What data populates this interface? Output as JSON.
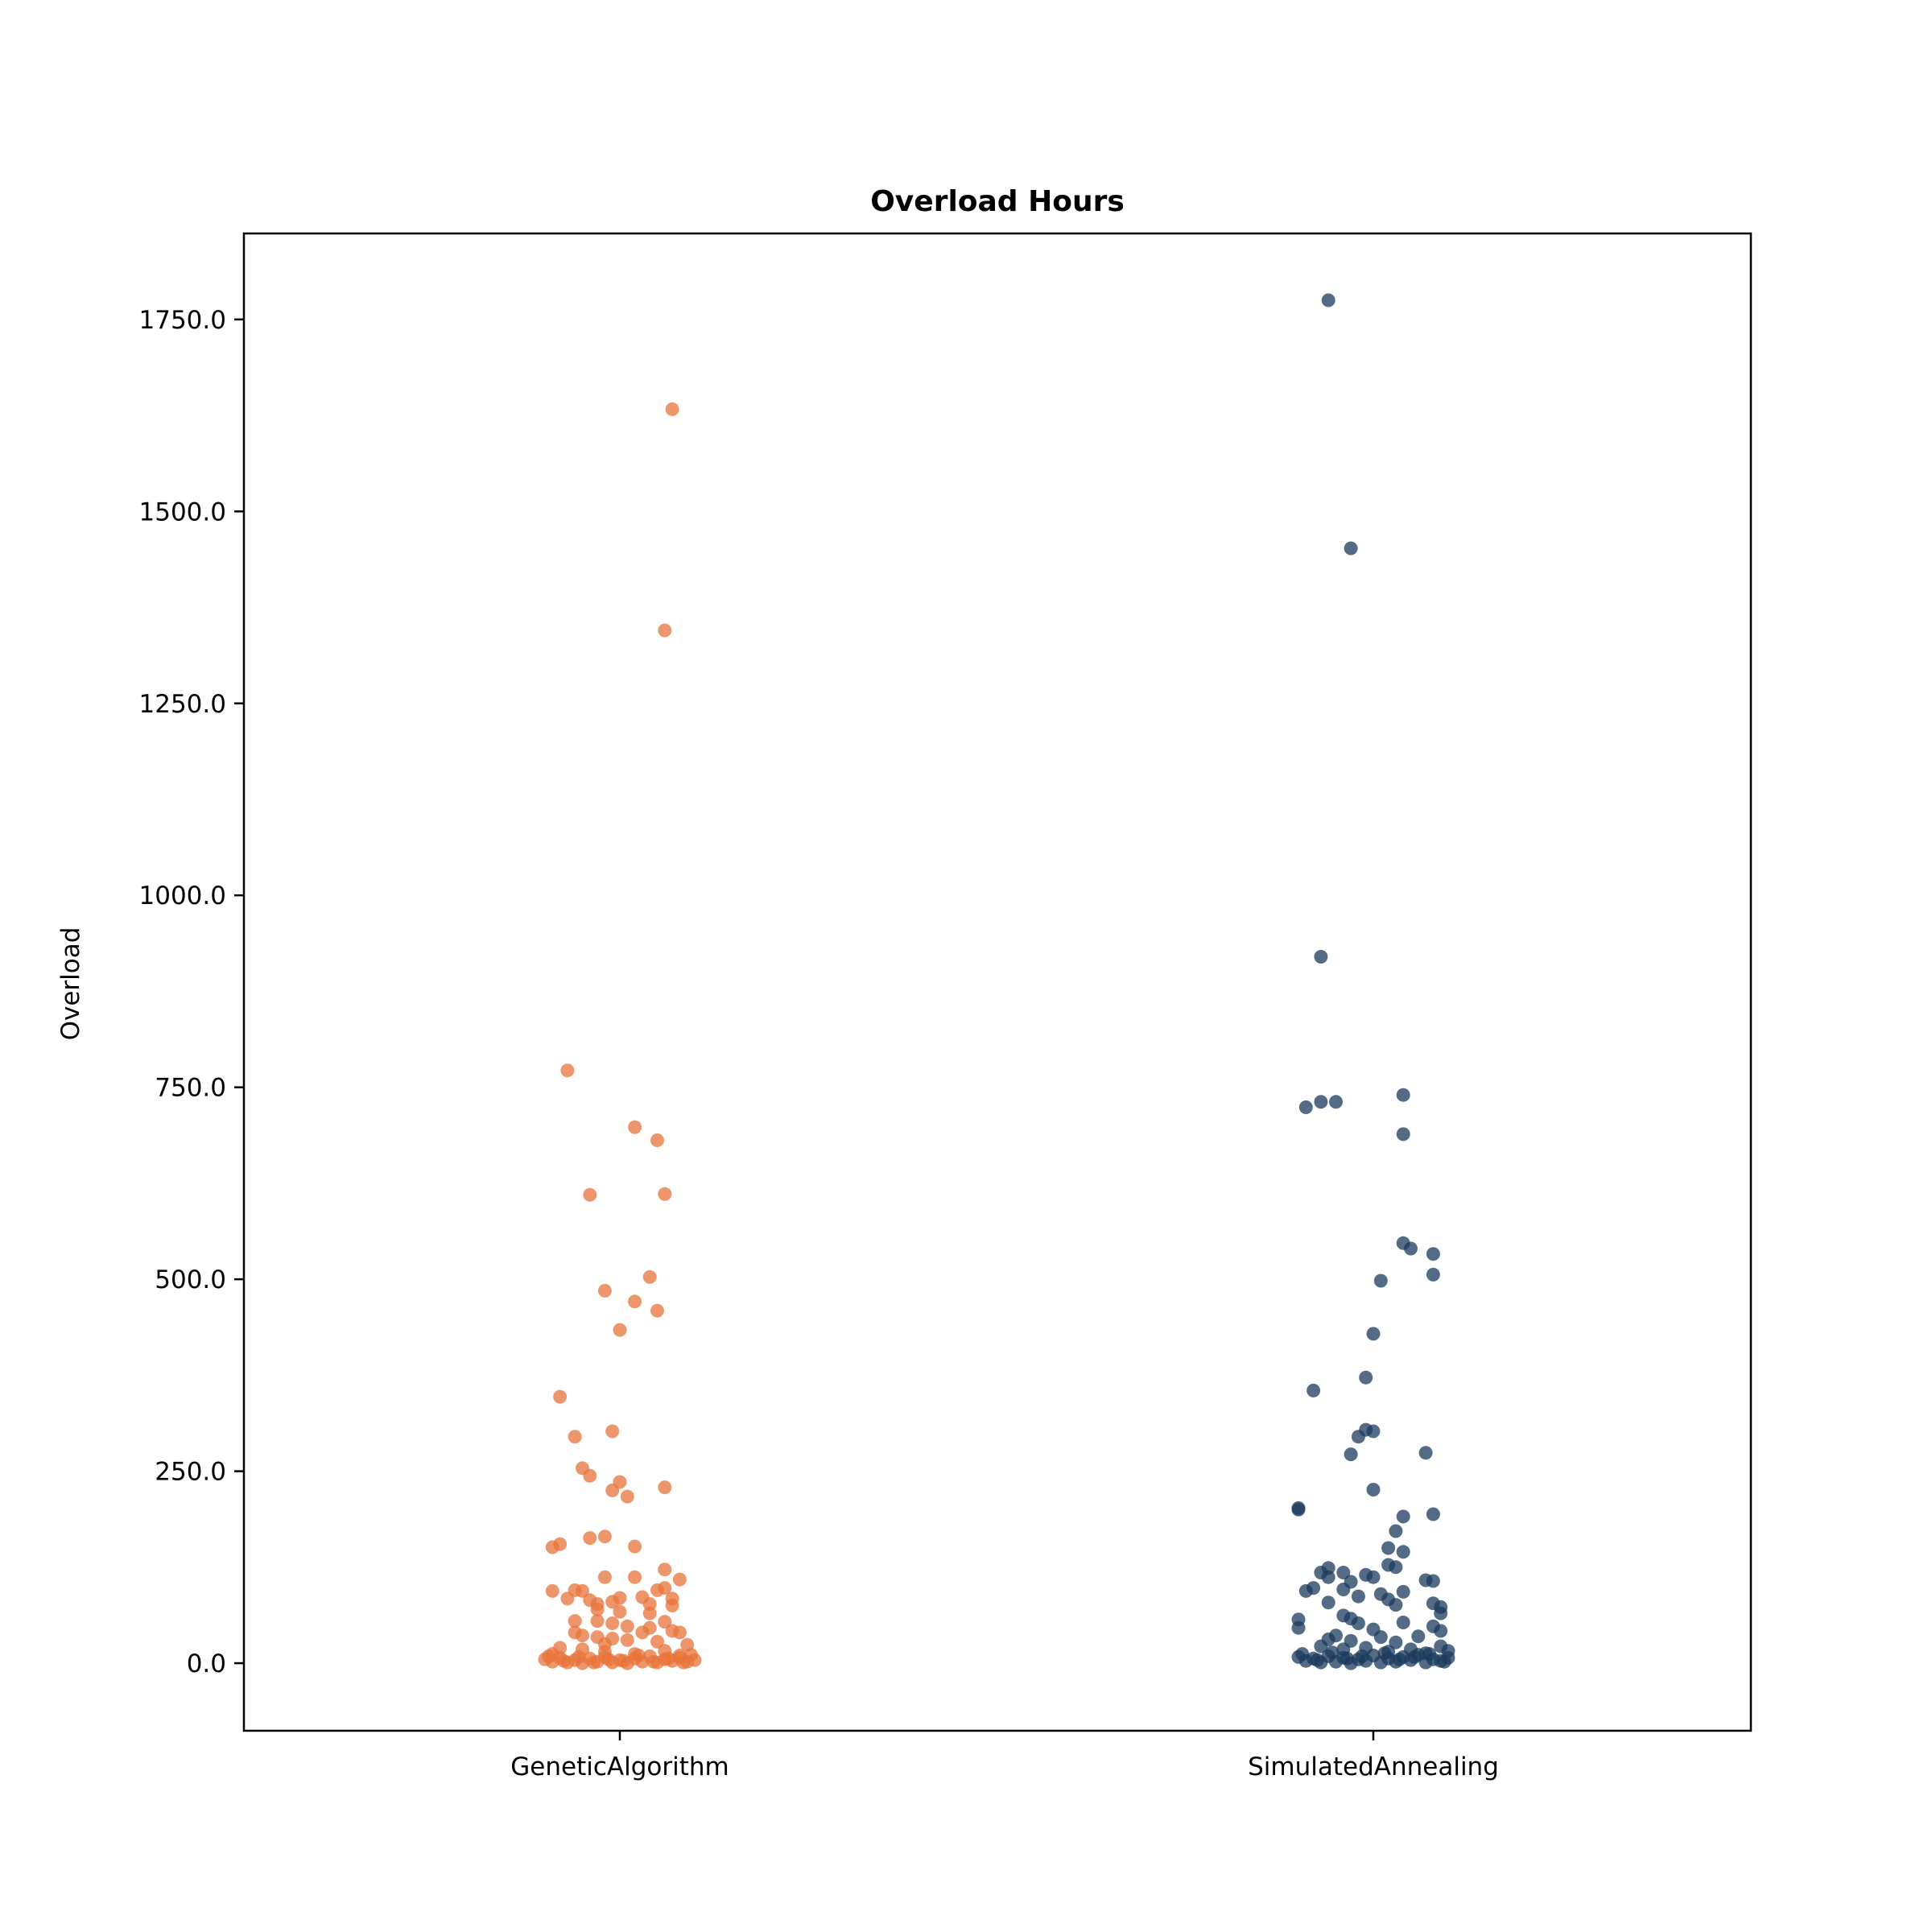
{
  "chart_data": {
    "type": "scatter",
    "title": "Overload Hours",
    "xlabel": "",
    "ylabel": "Overload",
    "categories": [
      "GeneticAlgorithm",
      "SimulatedAnnealing"
    ],
    "ylim": [
      -88,
      1862
    ],
    "yticks": [
      "0.0",
      "250.0",
      "500.0",
      "750.0",
      "1000.0",
      "1250.0",
      "1500.0",
      "1750.0"
    ],
    "grid": false,
    "legend": "none",
    "series": [
      {
        "color": "#E8733A",
        "points": [
          {
            "x": 0.07,
            "y": 1633
          },
          {
            "x": 0.06,
            "y": 1345
          },
          {
            "x": -0.07,
            "y": 772
          },
          {
            "x": 0.02,
            "y": 698
          },
          {
            "x": 0.05,
            "y": 681
          },
          {
            "x": -0.04,
            "y": 610
          },
          {
            "x": 0.06,
            "y": 611
          },
          {
            "x": 0.04,
            "y": 503
          },
          {
            "x": -0.02,
            "y": 485
          },
          {
            "x": 0.02,
            "y": 471
          },
          {
            "x": 0.05,
            "y": 459
          },
          {
            "x": 0.0,
            "y": 434
          },
          {
            "x": -0.08,
            "y": 347
          },
          {
            "x": -0.06,
            "y": 295
          },
          {
            "x": -0.01,
            "y": 302
          },
          {
            "x": -0.05,
            "y": 254
          },
          {
            "x": -0.04,
            "y": 244
          },
          {
            "x": 0.0,
            "y": 236
          },
          {
            "x": -0.01,
            "y": 225
          },
          {
            "x": 0.01,
            "y": 217
          },
          {
            "x": 0.06,
            "y": 229
          },
          {
            "x": -0.08,
            "y": 155
          },
          {
            "x": -0.09,
            "y": 151
          },
          {
            "x": -0.04,
            "y": 163
          },
          {
            "x": -0.02,
            "y": 165
          },
          {
            "x": 0.02,
            "y": 152
          },
          {
            "x": 0.06,
            "y": 122
          },
          {
            "x": -0.02,
            "y": 112
          },
          {
            "x": 0.02,
            "y": 112
          },
          {
            "x": 0.08,
            "y": 109
          },
          {
            "x": -0.09,
            "y": 94
          },
          {
            "x": -0.07,
            "y": 84
          },
          {
            "x": -0.06,
            "y": 95
          },
          {
            "x": -0.05,
            "y": 94
          },
          {
            "x": -0.04,
            "y": 82
          },
          {
            "x": -0.03,
            "y": 70
          },
          {
            "x": -0.01,
            "y": 80
          },
          {
            "x": 0.0,
            "y": 85
          },
          {
            "x": 0.03,
            "y": 86
          },
          {
            "x": 0.05,
            "y": 95
          },
          {
            "x": 0.06,
            "y": 98
          },
          {
            "x": 0.07,
            "y": 84
          },
          {
            "x": -0.03,
            "y": 77
          },
          {
            "x": 0.0,
            "y": 67
          },
          {
            "x": 0.04,
            "y": 77
          },
          {
            "x": 0.07,
            "y": 75
          },
          {
            "x": 0.04,
            "y": 65
          },
          {
            "x": -0.06,
            "y": 55
          },
          {
            "x": -0.03,
            "y": 55
          },
          {
            "x": -0.01,
            "y": 52
          },
          {
            "x": 0.01,
            "y": 48
          },
          {
            "x": 0.04,
            "y": 46
          },
          {
            "x": 0.06,
            "y": 54
          },
          {
            "x": 0.07,
            "y": 42
          },
          {
            "x": 0.08,
            "y": 40
          },
          {
            "x": -0.06,
            "y": 40
          },
          {
            "x": -0.05,
            "y": 36
          },
          {
            "x": -0.03,
            "y": 34
          },
          {
            "x": -0.01,
            "y": 32
          },
          {
            "x": 0.01,
            "y": 30
          },
          {
            "x": 0.03,
            "y": 40
          },
          {
            "x": 0.05,
            "y": 28
          },
          {
            "x": -0.02,
            "y": 25
          },
          {
            "x": 0.09,
            "y": 24
          },
          {
            "x": -0.08,
            "y": 20
          },
          {
            "x": -0.09,
            "y": 12
          },
          {
            "x": -0.05,
            "y": 18
          },
          {
            "x": -0.02,
            "y": 15
          },
          {
            "x": 0.02,
            "y": 12
          },
          {
            "x": 0.06,
            "y": 16
          },
          {
            "x": 0.08,
            "y": 10
          },
          {
            "x": -0.1,
            "y": 5
          },
          {
            "x": -0.09,
            "y": 2
          },
          {
            "x": -0.08,
            "y": 7
          },
          {
            "x": -0.07,
            "y": 1
          },
          {
            "x": -0.06,
            "y": 4
          },
          {
            "x": -0.05,
            "y": 0
          },
          {
            "x": -0.04,
            "y": 6
          },
          {
            "x": -0.03,
            "y": 2
          },
          {
            "x": -0.02,
            "y": 8
          },
          {
            "x": -0.01,
            "y": 1
          },
          {
            "x": 0.0,
            "y": 4
          },
          {
            "x": 0.01,
            "y": 0
          },
          {
            "x": 0.02,
            "y": 6
          },
          {
            "x": 0.03,
            "y": 2
          },
          {
            "x": 0.04,
            "y": 9
          },
          {
            "x": 0.05,
            "y": 1
          },
          {
            "x": 0.06,
            "y": 5
          },
          {
            "x": 0.07,
            "y": 3
          },
          {
            "x": 0.08,
            "y": 7
          },
          {
            "x": 0.09,
            "y": 2
          },
          {
            "x": 0.1,
            "y": 4
          },
          {
            "x": -0.095,
            "y": 9
          },
          {
            "x": -0.075,
            "y": 3
          },
          {
            "x": -0.055,
            "y": 8
          },
          {
            "x": -0.035,
            "y": 1
          },
          {
            "x": -0.015,
            "y": 5
          },
          {
            "x": 0.005,
            "y": 3
          },
          {
            "x": 0.025,
            "y": 10
          },
          {
            "x": 0.045,
            "y": 2
          },
          {
            "x": 0.065,
            "y": 6
          },
          {
            "x": 0.085,
            "y": 1
          },
          {
            "x": 0.095,
            "y": 11
          }
        ]
      },
      {
        "color": "#1B3A5C",
        "points": [
          {
            "x": -0.06,
            "y": 1775
          },
          {
            "x": -0.03,
            "y": 1452
          },
          {
            "x": -0.07,
            "y": 920
          },
          {
            "x": -0.09,
            "y": 724
          },
          {
            "x": -0.07,
            "y": 731
          },
          {
            "x": -0.05,
            "y": 731
          },
          {
            "x": 0.04,
            "y": 740
          },
          {
            "x": 0.04,
            "y": 689
          },
          {
            "x": 0.04,
            "y": 547
          },
          {
            "x": 0.05,
            "y": 540
          },
          {
            "x": 0.08,
            "y": 533
          },
          {
            "x": 0.08,
            "y": 506
          },
          {
            "x": 0.01,
            "y": 498
          },
          {
            "x": 0.0,
            "y": 429
          },
          {
            "x": -0.01,
            "y": 372
          },
          {
            "x": -0.08,
            "y": 355
          },
          {
            "x": -0.01,
            "y": 304
          },
          {
            "x": 0.0,
            "y": 302
          },
          {
            "x": -0.02,
            "y": 295
          },
          {
            "x": -0.03,
            "y": 272
          },
          {
            "x": 0.07,
            "y": 274
          },
          {
            "x": 0.0,
            "y": 226
          },
          {
            "x": -0.1,
            "y": 202
          },
          {
            "x": -0.1,
            "y": 200
          },
          {
            "x": 0.04,
            "y": 191
          },
          {
            "x": 0.08,
            "y": 194
          },
          {
            "x": 0.03,
            "y": 172
          },
          {
            "x": 0.02,
            "y": 150
          },
          {
            "x": 0.04,
            "y": 145
          },
          {
            "x": -0.07,
            "y": 118
          },
          {
            "x": -0.06,
            "y": 124
          },
          {
            "x": -0.06,
            "y": 112
          },
          {
            "x": -0.04,
            "y": 118
          },
          {
            "x": -0.03,
            "y": 106
          },
          {
            "x": -0.01,
            "y": 115
          },
          {
            "x": 0.0,
            "y": 112
          },
          {
            "x": 0.02,
            "y": 128
          },
          {
            "x": 0.03,
            "y": 125
          },
          {
            "x": 0.07,
            "y": 108
          },
          {
            "x": 0.08,
            "y": 107
          },
          {
            "x": -0.09,
            "y": 94
          },
          {
            "x": -0.08,
            "y": 98
          },
          {
            "x": -0.06,
            "y": 79
          },
          {
            "x": -0.04,
            "y": 96
          },
          {
            "x": -0.02,
            "y": 87
          },
          {
            "x": 0.01,
            "y": 90
          },
          {
            "x": 0.02,
            "y": 83
          },
          {
            "x": 0.03,
            "y": 76
          },
          {
            "x": 0.04,
            "y": 93
          },
          {
            "x": 0.08,
            "y": 78
          },
          {
            "x": 0.09,
            "y": 73
          },
          {
            "x": 0.09,
            "y": 65
          },
          {
            "x": -0.1,
            "y": 57
          },
          {
            "x": -0.1,
            "y": 46
          },
          {
            "x": -0.04,
            "y": 62
          },
          {
            "x": -0.03,
            "y": 58
          },
          {
            "x": -0.02,
            "y": 52
          },
          {
            "x": 0.0,
            "y": 44
          },
          {
            "x": 0.04,
            "y": 53
          },
          {
            "x": 0.08,
            "y": 48
          },
          {
            "x": 0.09,
            "y": 42
          },
          {
            "x": -0.06,
            "y": 31
          },
          {
            "x": -0.05,
            "y": 36
          },
          {
            "x": -0.03,
            "y": 29
          },
          {
            "x": 0.01,
            "y": 34
          },
          {
            "x": 0.03,
            "y": 27
          },
          {
            "x": 0.06,
            "y": 35
          },
          {
            "x": 0.09,
            "y": 22
          },
          {
            "x": -0.07,
            "y": 22
          },
          {
            "x": -0.04,
            "y": 18
          },
          {
            "x": -0.01,
            "y": 20
          },
          {
            "x": 0.02,
            "y": 15
          },
          {
            "x": 0.05,
            "y": 18
          },
          {
            "x": 0.07,
            "y": 13
          },
          {
            "x": -0.1,
            "y": 8
          },
          {
            "x": -0.09,
            "y": 3
          },
          {
            "x": -0.08,
            "y": 6
          },
          {
            "x": -0.07,
            "y": 1
          },
          {
            "x": -0.06,
            "y": 9
          },
          {
            "x": -0.05,
            "y": 2
          },
          {
            "x": -0.04,
            "y": 7
          },
          {
            "x": -0.03,
            "y": 0
          },
          {
            "x": -0.02,
            "y": 5
          },
          {
            "x": -0.01,
            "y": 3
          },
          {
            "x": 0.0,
            "y": 10
          },
          {
            "x": 0.01,
            "y": 1
          },
          {
            "x": 0.02,
            "y": 6
          },
          {
            "x": 0.03,
            "y": 2
          },
          {
            "x": 0.04,
            "y": 8
          },
          {
            "x": 0.05,
            "y": 4
          },
          {
            "x": 0.06,
            "y": 11
          },
          {
            "x": 0.07,
            "y": 1
          },
          {
            "x": 0.08,
            "y": 5
          },
          {
            "x": 0.09,
            "y": 3
          },
          {
            "x": 0.1,
            "y": 7
          },
          {
            "x": -0.095,
            "y": 12
          },
          {
            "x": -0.075,
            "y": 4
          },
          {
            "x": -0.055,
            "y": 14
          },
          {
            "x": -0.035,
            "y": 6
          },
          {
            "x": -0.015,
            "y": 9
          },
          {
            "x": 0.015,
            "y": 13
          },
          {
            "x": 0.035,
            "y": 5
          },
          {
            "x": 0.055,
            "y": 8
          },
          {
            "x": 0.075,
            "y": 12
          },
          {
            "x": 0.095,
            "y": 2
          },
          {
            "x": 0.1,
            "y": 16
          }
        ]
      }
    ]
  }
}
